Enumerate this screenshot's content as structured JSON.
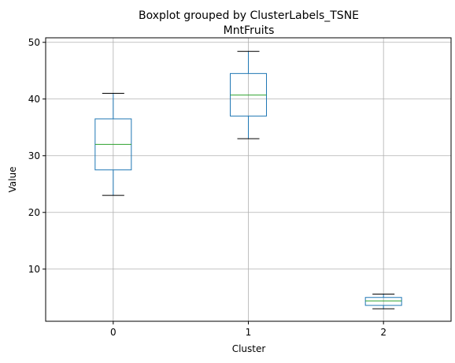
{
  "chart_data": {
    "type": "box",
    "suptitle": "Boxplot grouped by ClusterLabels_TSNE",
    "title": "MntFruits",
    "xlabel": "Cluster",
    "ylabel": "Value",
    "categories": [
      "0",
      "1",
      "2"
    ],
    "ylim": [
      0.8,
      50.8
    ],
    "yticks": [
      10,
      20,
      30,
      40,
      50
    ],
    "grid": true,
    "boxes": [
      {
        "category": "0",
        "whisker_low": 23.0,
        "q1": 27.5,
        "median": 32.0,
        "q3": 36.5,
        "whisker_high": 41.0
      },
      {
        "category": "1",
        "whisker_low": 33.0,
        "q1": 37.0,
        "median": 40.7,
        "q3": 44.5,
        "whisker_high": 48.4
      },
      {
        "category": "2",
        "whisker_low": 3.0,
        "q1": 3.6,
        "median": 4.4,
        "q3": 5.0,
        "whisker_high": 5.6
      }
    ],
    "colors": {
      "box": "#1f77b4",
      "median": "#2ca02c",
      "whisker": "#1f77b4",
      "cap": "#000000",
      "grid": "#b0b0b0"
    }
  }
}
